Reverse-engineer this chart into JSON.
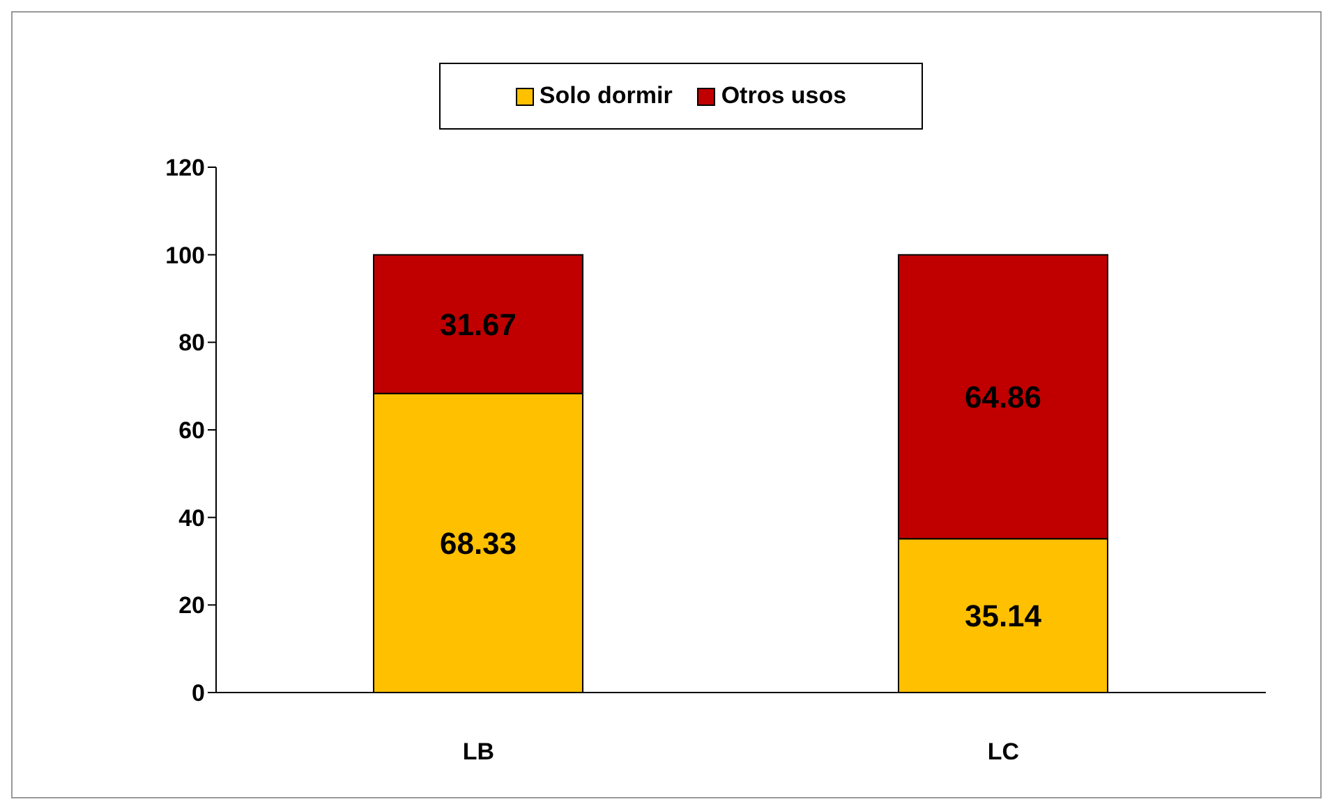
{
  "chart_data": {
    "type": "bar",
    "stacked": true,
    "categories": [
      "LB",
      "LC"
    ],
    "series": [
      {
        "name": "Solo dormir",
        "color": "#ffc000",
        "values": [
          68.33,
          35.14
        ]
      },
      {
        "name": "Otros usos",
        "color": "#c00000",
        "values": [
          31.67,
          64.86
        ]
      }
    ],
    "ylim": [
      0,
      120
    ],
    "yticks": [
      0,
      20,
      40,
      60,
      80,
      100,
      120
    ],
    "grid": false,
    "legend": "top",
    "data_labels": true
  }
}
